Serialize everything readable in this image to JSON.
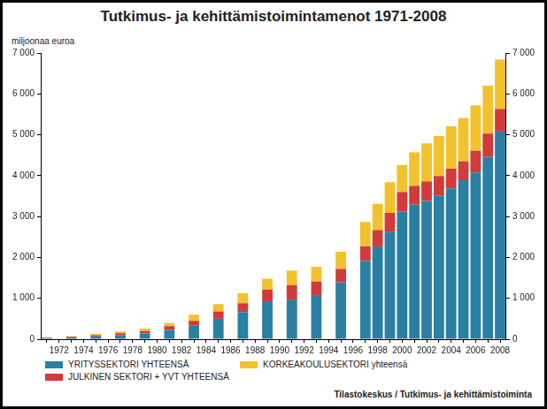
{
  "chart_data": {
    "type": "bar",
    "title": "Tutkimus- ja kehittämistoimintamenot 1971-2008",
    "ylabel": "miljoonaa euroa",
    "source": "Tilastokeskus / Tutkimus- ja kehittämistoiminta",
    "stacked": true,
    "grid": false,
    "legend": "bottom",
    "categories": [
      null,
      "1972",
      null,
      "1974",
      null,
      "1976",
      null,
      "1978",
      null,
      "1980",
      null,
      "1982",
      null,
      "1984",
      null,
      "1986",
      null,
      "1988",
      null,
      "1990",
      null,
      "1992",
      null,
      "1994",
      null,
      "1996",
      null,
      "1998",
      null,
      "2000",
      null,
      "2002",
      null,
      "2004",
      null,
      "2006",
      null,
      "2008"
    ],
    "series": [
      {
        "name": "YRITYSSEKTORI YHTEENSÄ",
        "color": "#2b7fa3",
        "values": [
          30,
          null,
          45,
          null,
          70,
          null,
          100,
          null,
          140,
          null,
          230,
          null,
          330,
          null,
          500,
          null,
          660,
          null,
          930,
          null,
          970,
          null,
          1060,
          null,
          1390,
          null,
          1920,
          2270,
          2630,
          3130,
          3290,
          3380,
          3510,
          3690,
          3890,
          4080,
          4460,
          5080
        ]
      },
      {
        "name": "JULKINEN SEKTORI + YVT YHTEENSÄ",
        "color": "#d13b3b",
        "values": [
          10,
          null,
          15,
          null,
          30,
          null,
          45,
          null,
          60,
          null,
          90,
          null,
          120,
          null,
          180,
          null,
          220,
          null,
          285,
          null,
          355,
          null,
          350,
          null,
          330,
          null,
          350,
          400,
          460,
          470,
          460,
          480,
          480,
          480,
          460,
          530,
          570,
          550
        ]
      },
      {
        "name": "KORKEAKOULUSEKTORI yhteensä",
        "color": "#f2c12e",
        "values": [
          10,
          null,
          15,
          null,
          30,
          null,
          45,
          null,
          60,
          null,
          80,
          null,
          150,
          null,
          180,
          null,
          245,
          null,
          265,
          null,
          355,
          null,
          360,
          null,
          420,
          null,
          600,
          640,
          750,
          660,
          820,
          930,
          980,
          1040,
          1060,
          1110,
          1170,
          1210
        ]
      }
    ],
    "ylim": [
      0,
      7000
    ],
    "yticks": [
      0,
      {
        "value": 1000,
        "label": "1 000"
      },
      {
        "value": 2000,
        "label": "2 000"
      },
      {
        "value": 3000,
        "label": "3 000"
      },
      {
        "value": 4000,
        "label": "4 000"
      },
      {
        "value": 5000,
        "label": "5 000"
      },
      {
        "value": 6000,
        "label": "6 000"
      },
      {
        "value": 7000,
        "label": "7 000"
      }
    ],
    "y2lim": [
      0,
      7000
    ],
    "y2ticks": [
      0,
      {
        "value": 1000,
        "label": "1 000"
      },
      {
        "value": 2000,
        "label": "2 000"
      },
      {
        "value": 3000,
        "label": "3 000"
      },
      {
        "value": 4000,
        "label": "4 000"
      },
      {
        "value": 5000,
        "label": "5 000"
      },
      {
        "value": 6000,
        "label": "6 000"
      },
      {
        "value": 7000,
        "label": "7 000"
      }
    ]
  }
}
